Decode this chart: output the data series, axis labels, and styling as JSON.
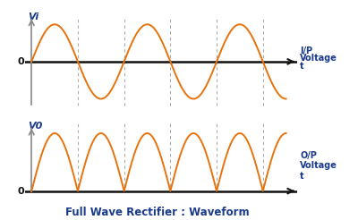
{
  "background_color": "#ffffff",
  "wave_color": "#e8720c",
  "axis_color": "#111111",
  "yaxis_color": "#888888",
  "dashed_color": "#aaaaaa",
  "title": "Full Wave Rectifier : Waveform",
  "title_fontsize": 8.5,
  "title_color": "#1a3a8a",
  "label_color": "#1a3a8a",
  "top_ylabel": "Vi",
  "top_zero": "0",
  "top_right_label1": "I/P",
  "top_right_label2": "Voltage",
  "top_right_t": "t",
  "bot_ylabel": "V0",
  "bot_zero": "0",
  "bot_right_label1": "O/P",
  "bot_right_label2": "Voltage",
  "bot_right_t": "t",
  "num_cycles": 2.75,
  "figsize": [
    4.0,
    2.46
  ],
  "dpi": 100
}
